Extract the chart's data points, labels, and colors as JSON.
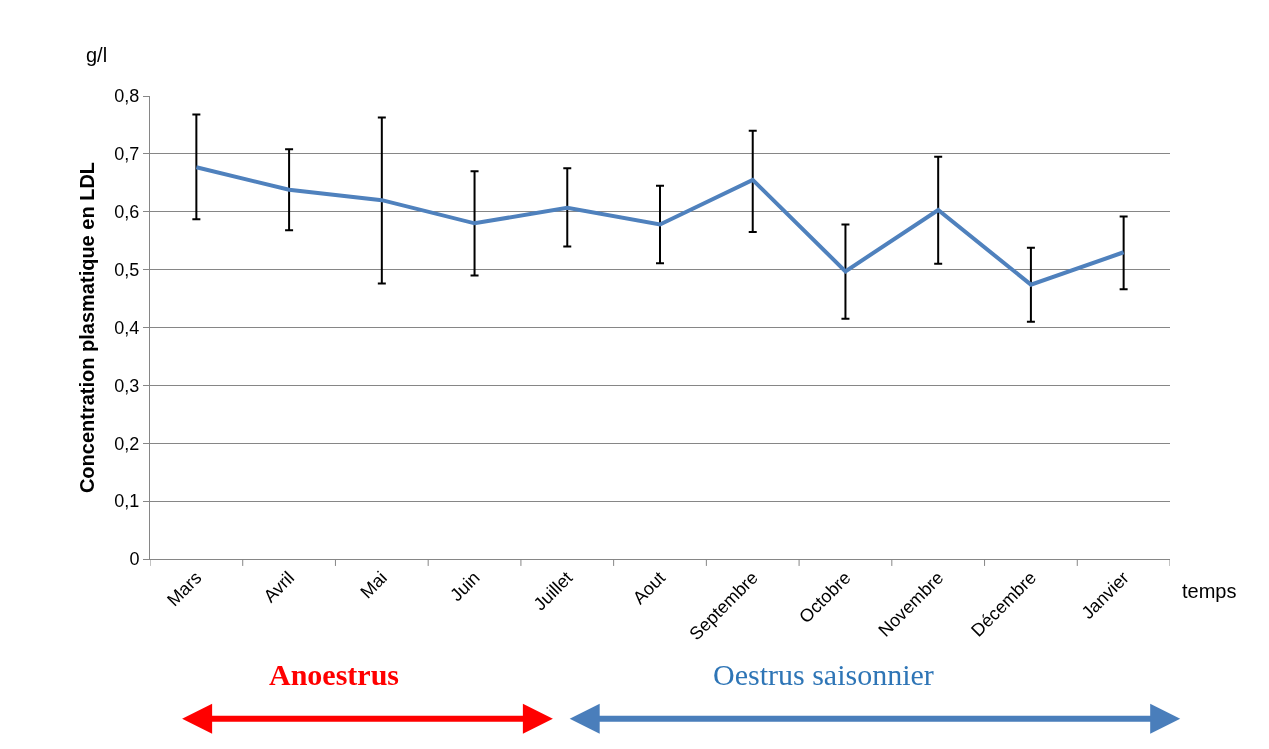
{
  "chart_data": {
    "type": "line",
    "ylabel": "Concentration plasmatique en LDL",
    "xlabel": "temps",
    "categories": [
      "Mars",
      "Avril",
      "Mai",
      "Juin",
      "Juillet",
      "Aout",
      "Septembre",
      "Octobre",
      "Novembre",
      "Décembre",
      "Janvier"
    ],
    "series": [
      {
        "color": "#4f81bd",
        "values": [
          0.677,
          0.638,
          0.62,
          0.58,
          0.607,
          0.578,
          0.655,
          0.497,
          0.603,
          0.474,
          0.53
        ],
        "errors": [
          [
            0.587,
            0.768
          ],
          [
            0.568,
            0.708
          ],
          [
            0.476,
            0.763
          ],
          [
            0.49,
            0.67
          ],
          [
            0.54,
            0.675
          ],
          [
            0.511,
            0.645
          ],
          [
            0.565,
            0.74
          ],
          [
            0.415,
            0.578
          ],
          [
            0.51,
            0.695
          ],
          [
            0.41,
            0.538
          ],
          [
            0.466,
            0.592
          ]
        ]
      }
    ],
    "ylim": [
      0,
      0.8
    ],
    "yticks": [
      {
        "value": 0,
        "label": "0"
      },
      {
        "value": 0.1,
        "label": "0,1"
      },
      {
        "value": 0.2,
        "label": "0,2"
      },
      {
        "value": 0.3,
        "label": "0,3"
      },
      {
        "value": 0.4,
        "label": "0,4"
      },
      {
        "value": 0.5,
        "label": "0,5"
      },
      {
        "value": 0.6,
        "label": "0,6"
      },
      {
        "value": 0.7,
        "label": "0,7"
      },
      {
        "value": 0.8,
        "label": "0,8"
      }
    ],
    "grid": "y",
    "marker": "none",
    "line_style": "solid",
    "annotations": [
      "g/l",
      "Anoestrus",
      "Oestrus saisonnier"
    ]
  }
}
